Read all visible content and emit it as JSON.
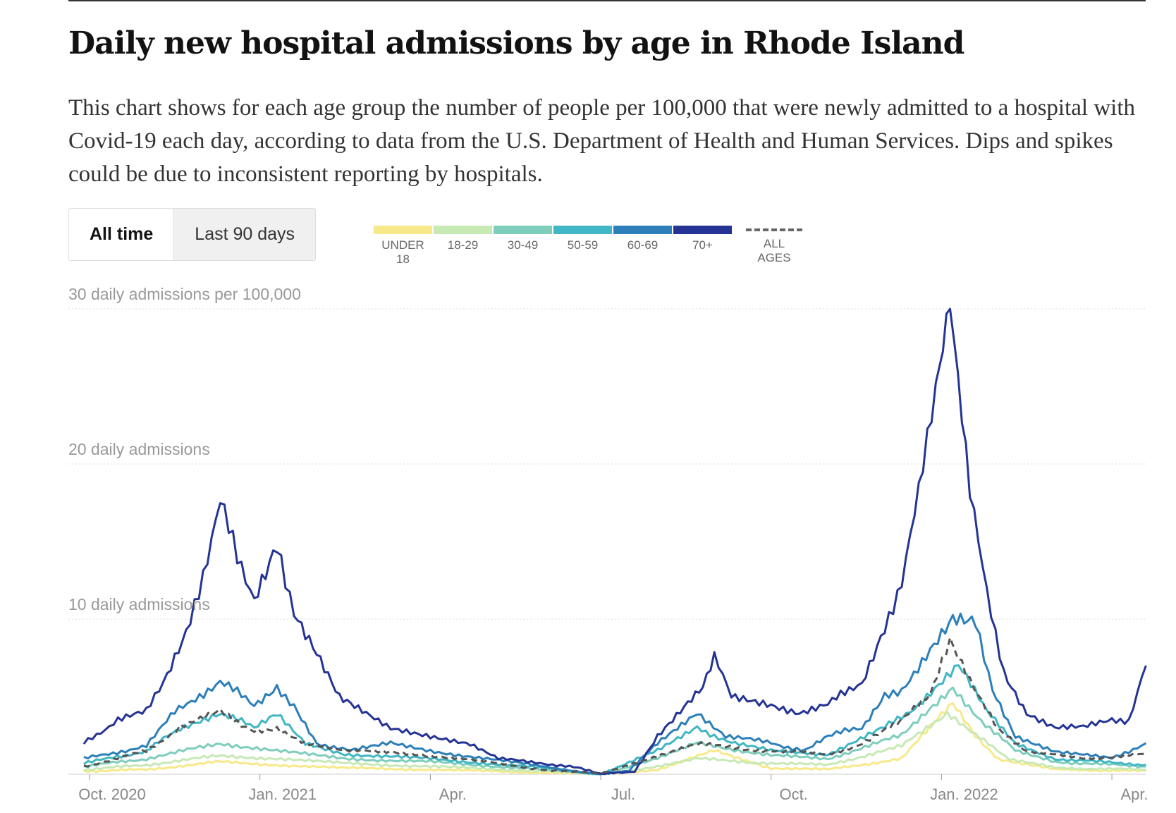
{
  "title": "Daily new hospital admissions by age in Rhode Island",
  "description": "This chart shows for each age group the number of people per 100,000 that were newly admitted to a hospital with Covid-19 each day, according to data from the U.S. Department of Health and Human Services. Dips and spikes could be due to inconsistent reporting by hospitals.",
  "tabs": [
    {
      "label": "All time",
      "active": true
    },
    {
      "label": "Last 90 days",
      "active": false
    }
  ],
  "chart_data": {
    "type": "line",
    "title": "Daily new hospital admissions by age in Rhode Island",
    "ylabel": "daily admissions per 100,000",
    "ylim": [
      0,
      30
    ],
    "y_ticks": [
      {
        "value": 30,
        "label": "30 daily admissions per 100,000"
      },
      {
        "value": 20,
        "label": "20 daily admissions"
      },
      {
        "value": 10,
        "label": "10 daily admissions"
      }
    ],
    "x_unit": "months since Oct. 2020",
    "x_ticks": [
      {
        "value": 0,
        "label": "Oct. 2020"
      },
      {
        "value": 3,
        "label": "Jan. 2021"
      },
      {
        "value": 6,
        "label": "Apr."
      },
      {
        "value": 9,
        "label": "Jul."
      },
      {
        "value": 12,
        "label": "Oct."
      },
      {
        "value": 15,
        "label": "Jan. 2022"
      },
      {
        "value": 18,
        "label": "Apr."
      }
    ],
    "grid": true,
    "legend_position": "top",
    "series": [
      {
        "name": "UNDER 18",
        "color": "#f7e98a",
        "dashed": false,
        "points": [
          [
            -0.1,
            0.2
          ],
          [
            1,
            0.3
          ],
          [
            2.3,
            0.8
          ],
          [
            3.3,
            0.6
          ],
          [
            4.5,
            0.4
          ],
          [
            6,
            0.3
          ],
          [
            8,
            0.1
          ],
          [
            9,
            0
          ],
          [
            10,
            0.3
          ],
          [
            11,
            1.5
          ],
          [
            12,
            0.4
          ],
          [
            13,
            0.3
          ],
          [
            14.3,
            1
          ],
          [
            14.8,
            3
          ],
          [
            15.2,
            4.5
          ],
          [
            15.6,
            2.5
          ],
          [
            16,
            1
          ],
          [
            17,
            0.3
          ],
          [
            18.6,
            0.2
          ]
        ]
      },
      {
        "name": "18-29",
        "color": "#c7e9b4",
        "dashed": false,
        "points": [
          [
            -0.1,
            0.3
          ],
          [
            1,
            0.6
          ],
          [
            2.3,
            1.2
          ],
          [
            3.3,
            1
          ],
          [
            4.5,
            0.7
          ],
          [
            6,
            0.5
          ],
          [
            8,
            0.2
          ],
          [
            9,
            0
          ],
          [
            10,
            0.5
          ],
          [
            10.7,
            1
          ],
          [
            12,
            0.7
          ],
          [
            13,
            0.6
          ],
          [
            14.3,
            1.8
          ],
          [
            15.1,
            4
          ],
          [
            15.6,
            2.5
          ],
          [
            16.2,
            1
          ],
          [
            17,
            0.4
          ],
          [
            18.6,
            0.3
          ]
        ]
      },
      {
        "name": "30-49",
        "color": "#7fcdbb",
        "dashed": false,
        "points": [
          [
            -0.1,
            0.5
          ],
          [
            1,
            1
          ],
          [
            2.3,
            2
          ],
          [
            3.3,
            1.5
          ],
          [
            4.5,
            1
          ],
          [
            6,
            0.8
          ],
          [
            8,
            0.3
          ],
          [
            9,
            0
          ],
          [
            10,
            1
          ],
          [
            10.7,
            2
          ],
          [
            12,
            1.2
          ],
          [
            13,
            1
          ],
          [
            14.3,
            2.5
          ],
          [
            15.2,
            5.5
          ],
          [
            15.7,
            3.5
          ],
          [
            16.3,
            1.5
          ],
          [
            17,
            0.8
          ],
          [
            18.6,
            0.5
          ]
        ]
      },
      {
        "name": "50-59",
        "color": "#41b6c4",
        "dashed": false,
        "points": [
          [
            -0.1,
            0.7
          ],
          [
            1,
            1.5
          ],
          [
            1.6,
            3
          ],
          [
            2.3,
            4
          ],
          [
            2.9,
            3
          ],
          [
            3.3,
            3.8
          ],
          [
            3.8,
            2
          ],
          [
            4.5,
            1.3
          ],
          [
            6,
            1
          ],
          [
            8,
            0.4
          ],
          [
            9,
            0
          ],
          [
            10,
            1.5
          ],
          [
            10.7,
            3
          ],
          [
            11.3,
            2
          ],
          [
            12,
            1.5
          ],
          [
            13,
            1.3
          ],
          [
            14,
            3
          ],
          [
            14.6,
            4.5
          ],
          [
            15.3,
            7
          ],
          [
            15.8,
            4
          ],
          [
            16.3,
            2
          ],
          [
            17,
            1
          ],
          [
            18.6,
            0.6
          ]
        ]
      },
      {
        "name": "60-69",
        "color": "#2c7fb8",
        "dashed": false,
        "points": [
          [
            -0.1,
            1
          ],
          [
            1,
            1.8
          ],
          [
            1.5,
            4
          ],
          [
            2.3,
            6
          ],
          [
            2.9,
            4.5
          ],
          [
            3.3,
            5.5
          ],
          [
            3.6,
            4.5
          ],
          [
            4,
            2
          ],
          [
            4.6,
            1.5
          ],
          [
            5.3,
            2
          ],
          [
            6,
            1.5
          ],
          [
            7,
            1
          ],
          [
            8,
            0.5
          ],
          [
            9,
            0
          ],
          [
            9.5,
            0.2
          ],
          [
            10,
            2
          ],
          [
            10.7,
            4
          ],
          [
            11.2,
            2.5
          ],
          [
            12,
            2
          ],
          [
            12.6,
            1.5
          ],
          [
            13,
            2.5
          ],
          [
            13.6,
            3
          ],
          [
            14,
            5
          ],
          [
            14.3,
            5.5
          ],
          [
            14.8,
            8
          ],
          [
            15.2,
            10.3
          ],
          [
            15.6,
            10
          ],
          [
            15.9,
            5.5
          ],
          [
            16.3,
            2.5
          ],
          [
            17,
            1.5
          ],
          [
            18,
            1
          ],
          [
            18.6,
            2
          ]
        ]
      },
      {
        "name": "70+",
        "color": "#253494",
        "dashed": false,
        "points": [
          [
            -0.1,
            2
          ],
          [
            0.5,
            3.5
          ],
          [
            1,
            4
          ],
          [
            1.3,
            6
          ],
          [
            1.7,
            9
          ],
          [
            2,
            13
          ],
          [
            2.3,
            17.5
          ],
          [
            2.6,
            14
          ],
          [
            2.9,
            11.5
          ],
          [
            3.3,
            15
          ],
          [
            3.6,
            10.5
          ],
          [
            4,
            8
          ],
          [
            4.4,
            5
          ],
          [
            4.8,
            4
          ],
          [
            5.3,
            3
          ],
          [
            6,
            2.5
          ],
          [
            6.7,
            2
          ],
          [
            7.2,
            1
          ],
          [
            8,
            0.7
          ],
          [
            8.6,
            0.4
          ],
          [
            9,
            0
          ],
          [
            9.6,
            0.2
          ],
          [
            10,
            2.5
          ],
          [
            10.4,
            4
          ],
          [
            10.8,
            5.5
          ],
          [
            11,
            7.5
          ],
          [
            11.3,
            5
          ],
          [
            12,
            4.5
          ],
          [
            12.5,
            4
          ],
          [
            13,
            4.5
          ],
          [
            13.6,
            6
          ],
          [
            14,
            9.5
          ],
          [
            14.3,
            12.5
          ],
          [
            14.6,
            18
          ],
          [
            14.9,
            25
          ],
          [
            15.15,
            30
          ],
          [
            15.5,
            18
          ],
          [
            15.8,
            12
          ],
          [
            16.1,
            6.5
          ],
          [
            16.5,
            4
          ],
          [
            17,
            3
          ],
          [
            17.5,
            3
          ],
          [
            18,
            3.5
          ],
          [
            18.3,
            3.5
          ],
          [
            18.6,
            7
          ]
        ]
      },
      {
        "name": "ALL AGES",
        "color": "#555555",
        "dashed": true,
        "points": [
          [
            -0.1,
            0.5
          ],
          [
            1,
            1.5
          ],
          [
            1.6,
            3
          ],
          [
            2.3,
            4
          ],
          [
            2.9,
            2.8
          ],
          [
            3.3,
            3
          ],
          [
            3.8,
            2
          ],
          [
            4.5,
            1.5
          ],
          [
            5.3,
            1.5
          ],
          [
            6,
            1.2
          ],
          [
            7,
            0.8
          ],
          [
            8,
            0.3
          ],
          [
            9,
            0
          ],
          [
            10,
            1.2
          ],
          [
            10.7,
            2
          ],
          [
            11.5,
            1.6
          ],
          [
            12.5,
            1.5
          ],
          [
            13,
            1.2
          ],
          [
            13.6,
            2
          ],
          [
            14.3,
            3.5
          ],
          [
            14.8,
            5
          ],
          [
            15.15,
            8.5
          ],
          [
            15.5,
            6
          ],
          [
            16,
            3
          ],
          [
            16.5,
            1.5
          ],
          [
            17.5,
            1
          ],
          [
            18.6,
            1.3
          ]
        ]
      }
    ]
  }
}
